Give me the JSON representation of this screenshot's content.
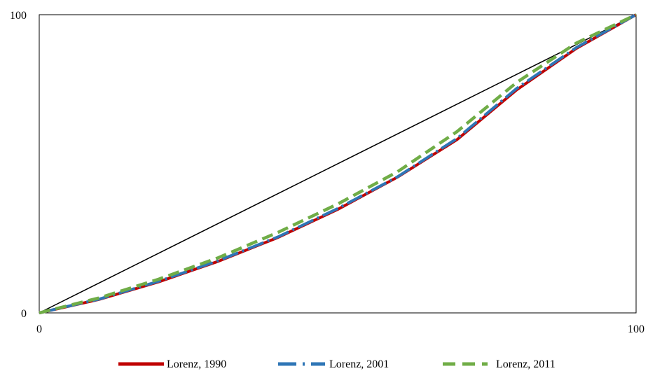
{
  "chart_data": {
    "type": "line",
    "title": "",
    "xlabel": "",
    "ylabel": "",
    "xlim": [
      0,
      100
    ],
    "ylim": [
      0,
      100
    ],
    "x_ticks": [
      "0",
      "100"
    ],
    "y_ticks": [
      "0",
      "100"
    ],
    "grid": false,
    "legend_position": "bottom",
    "equality_line": {
      "x": [
        0,
        100
      ],
      "y": [
        0,
        100
      ],
      "color": "#000000"
    },
    "series": [
      {
        "name": "Lorenz, 1990",
        "style": "solid",
        "color": "#C00000",
        "x": [
          0,
          10,
          20,
          30,
          40,
          50,
          60,
          70,
          80,
          90,
          100
        ],
        "y": [
          0,
          4.5,
          10.4,
          17.3,
          25.3,
          34.7,
          45.5,
          58.1,
          74.8,
          88.7,
          100
        ]
      },
      {
        "name": "Lorenz,  2001",
        "style": "dash-dot",
        "color": "#2E75B6",
        "x": [
          0,
          10,
          20,
          30,
          40,
          50,
          60,
          70,
          80,
          90,
          100
        ],
        "y": [
          0,
          4.6,
          10.6,
          17.5,
          25.5,
          35.0,
          45.6,
          58.5,
          75.3,
          89.0,
          100
        ]
      },
      {
        "name": "Lorenz,  2011",
        "style": "dashed",
        "color": "#70AD47",
        "x": [
          0,
          10,
          20,
          30,
          40,
          50,
          60,
          70,
          80,
          90,
          100
        ],
        "y": [
          0,
          5.0,
          11.3,
          18.5,
          27.0,
          36.5,
          47.3,
          60.8,
          77.3,
          90.5,
          100
        ]
      }
    ]
  }
}
